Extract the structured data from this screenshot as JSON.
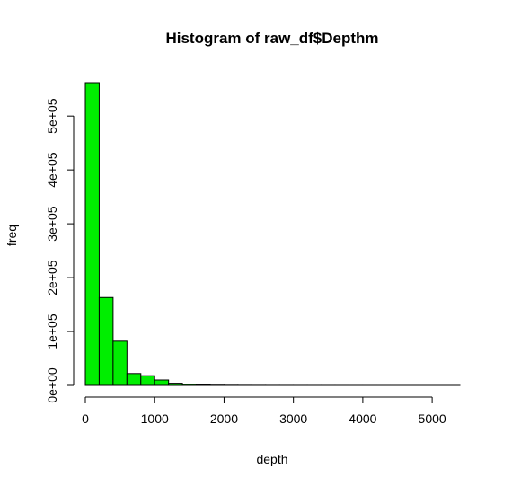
{
  "chart_data": {
    "type": "bar",
    "subtype": "histogram",
    "title": "Histogram of raw_df$Depthm",
    "xlabel": "depth",
    "ylabel": "freq",
    "bar_color": "#00ee00",
    "bin_width": 200,
    "bins": [
      {
        "start": 0,
        "end": 200,
        "count": 562000
      },
      {
        "start": 200,
        "end": 400,
        "count": 163000
      },
      {
        "start": 400,
        "end": 600,
        "count": 82000
      },
      {
        "start": 600,
        "end": 800,
        "count": 22000
      },
      {
        "start": 800,
        "end": 1000,
        "count": 18000
      },
      {
        "start": 1000,
        "end": 1200,
        "count": 10000
      },
      {
        "start": 1200,
        "end": 1400,
        "count": 4000
      },
      {
        "start": 1400,
        "end": 1600,
        "count": 2000
      },
      {
        "start": 1600,
        "end": 1800,
        "count": 800
      },
      {
        "start": 1800,
        "end": 2000,
        "count": 500
      },
      {
        "start": 2000,
        "end": 2200,
        "count": 300
      },
      {
        "start": 2200,
        "end": 2400,
        "count": 200
      },
      {
        "start": 2400,
        "end": 2600,
        "count": 150
      },
      {
        "start": 2600,
        "end": 2800,
        "count": 100
      },
      {
        "start": 2800,
        "end": 3000,
        "count": 80
      },
      {
        "start": 3000,
        "end": 3200,
        "count": 60
      },
      {
        "start": 3200,
        "end": 3400,
        "count": 50
      },
      {
        "start": 3400,
        "end": 3600,
        "count": 40
      },
      {
        "start": 3600,
        "end": 3800,
        "count": 30
      },
      {
        "start": 3800,
        "end": 4000,
        "count": 20
      },
      {
        "start": 4000,
        "end": 4200,
        "count": 15
      },
      {
        "start": 4200,
        "end": 4400,
        "count": 10
      },
      {
        "start": 4400,
        "end": 4600,
        "count": 8
      },
      {
        "start": 4600,
        "end": 4800,
        "count": 5
      },
      {
        "start": 4800,
        "end": 5000,
        "count": 3
      },
      {
        "start": 5000,
        "end": 5200,
        "count": 2
      },
      {
        "start": 5200,
        "end": 5400,
        "count": 1
      }
    ],
    "xlim": [
      0,
      5400
    ],
    "ylim": [
      0,
      562000
    ],
    "x_ticks": [
      0,
      1000,
      2000,
      3000,
      4000,
      5000
    ],
    "x_tick_labels": [
      "0",
      "1000",
      "2000",
      "3000",
      "4000",
      "5000"
    ],
    "y_ticks": [
      0,
      100000,
      200000,
      300000,
      400000,
      500000
    ],
    "y_tick_labels": [
      "0e+00",
      "1e+05",
      "2e+05",
      "3e+05",
      "4e+05",
      "5e+05"
    ],
    "grid": false,
    "legend": "none"
  }
}
